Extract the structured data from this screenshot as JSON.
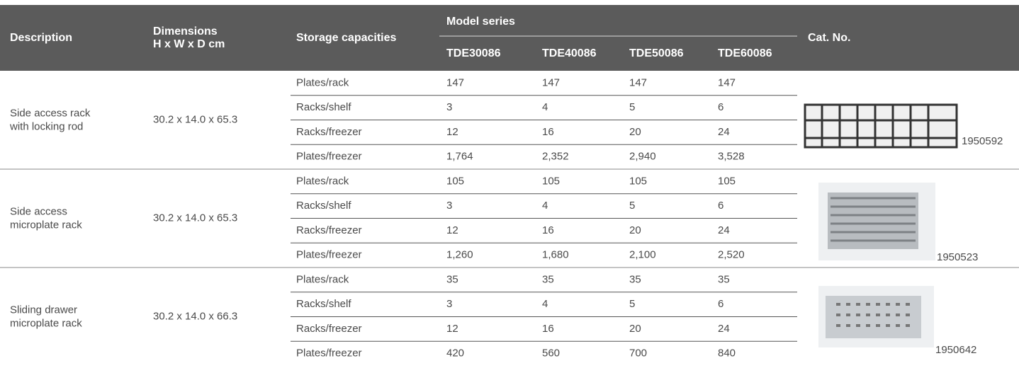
{
  "header": {
    "description": "Description",
    "dimensions": [
      "Dimensions",
      "H x W x D cm"
    ],
    "storage": "Storage capacities",
    "model_series": "Model series",
    "models": [
      "TDE30086",
      "TDE40086",
      "TDE50086",
      "TDE60086"
    ],
    "cat_no": "Cat. No."
  },
  "groups": [
    {
      "description": [
        "Side access rack",
        "with locking rod"
      ],
      "dimensions": "30.2 x 14.0 x 65.3",
      "cat_no": "1950592",
      "rows": [
        {
          "label": "Plates/rack",
          "values": [
            "147",
            "147",
            "147",
            "147"
          ]
        },
        {
          "label": "Racks/shelf",
          "values": [
            "3",
            "4",
            "5",
            "6"
          ]
        },
        {
          "label": "Racks/freezer",
          "values": [
            "12",
            "16",
            "20",
            "24"
          ]
        },
        {
          "label": "Plates/freezer",
          "values": [
            "1,764",
            "2,352",
            "2,940",
            "3,528"
          ]
        }
      ]
    },
    {
      "description": [
        "Side access",
        "microplate rack"
      ],
      "dimensions": "30.2 x 14.0 x 65.3",
      "cat_no": "1950523",
      "rows": [
        {
          "label": "Plates/rack",
          "values": [
            "105",
            "105",
            "105",
            "105"
          ]
        },
        {
          "label": "Racks/shelf",
          "values": [
            "3",
            "4",
            "5",
            "6"
          ]
        },
        {
          "label": "Racks/freezer",
          "values": [
            "12",
            "16",
            "20",
            "24"
          ]
        },
        {
          "label": "Plates/freezer",
          "values": [
            "1,260",
            "1,680",
            "2,100",
            "2,520"
          ]
        }
      ]
    },
    {
      "description": [
        "Sliding drawer",
        "microplate rack"
      ],
      "dimensions": "30.2 x 14.0 x 66.3",
      "cat_no": "1950642",
      "rows": [
        {
          "label": "Plates/rack",
          "values": [
            "35",
            "35",
            "35",
            "35"
          ]
        },
        {
          "label": "Racks/shelf",
          "values": [
            "3",
            "4",
            "5",
            "6"
          ]
        },
        {
          "label": "Racks/freezer",
          "values": [
            "12",
            "16",
            "20",
            "24"
          ]
        },
        {
          "label": "Plates/freezer",
          "values": [
            "420",
            "560",
            "700",
            "840"
          ]
        }
      ]
    }
  ]
}
